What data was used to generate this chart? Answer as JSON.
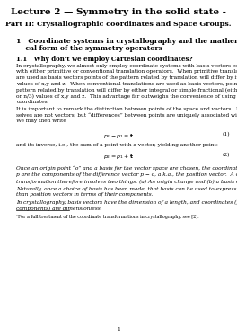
{
  "title": "Lecture 2 — Symmetry in the solid state -",
  "subtitle": "Part II: Crystallographic coordinates and Space Groups.",
  "section1_num": "1",
  "section1_text": "Coordinate systems in crystallography and the mathemati-\ncal form of the symmetry operators",
  "subsection1_text": "1.1   Why don’t we employ Cartesian coordinates?",
  "para1": "In crystallography, we almost only employ coordinate systems with basis vectors coinciding\nwith either primitive or conventional translation operators.  When primitive translations\nare used as basis vectors points of the pattern related by translation will differ by integral\nvalues of x,y and z.  When conventional translations are used as basis vectors, points of the\npattern related by translation will differ by either integral or simple fractional (either n/2\nor n/3) values of x,y and z.  This advantage far outweighs the convenience of using Cartesian\ncoordinates.",
  "para2": "It is important to remark the distinction between points of the space and vectors.  Points them-\nselves are not vectors, but “differences” between points are uniquely associated with vectors.\nWe may then write",
  "eq1": "$p_2 - p_1 = \\mathbf{t}$",
  "eq1_num": "(1)",
  "eq2_intro": "and its inverse, i.e., the sum of a point with a vector, yielding another point:",
  "eq2": "$p_2 = p_1 + \\mathbf{t}$",
  "eq2_num": "(2)",
  "para3": "Once an origin point “o” and a basis for the vector space are chosen, the coordinates of a point\np are the components of the difference vector p − o, a.k.a., the position vector.  A coordinate\ntransformation therefore involves two things: (a) An origin change and (b) a basis change¹.",
  "para4": "Naturally, once a choice of basis has been made, that basis can be used to express vectors other\nthan position vectors in terms of their components.",
  "para5": "In crystallography, basis vectors have the dimension of a length, and coordinates (position vector\ncomponents) are dimensionless.",
  "footnote": "¹For a full treatment of the coordinate transformations in crystallography, see [2].",
  "page_num": "1",
  "bg_color": "#ffffff",
  "text_color": "#000000",
  "fs_title": 7.5,
  "fs_subtitle": 5.8,
  "fs_section": 5.5,
  "fs_subsection": 5.0,
  "fs_body": 4.2,
  "fs_footnote": 3.5,
  "fs_eq": 4.5,
  "ml": 0.07,
  "mr": 0.97
}
